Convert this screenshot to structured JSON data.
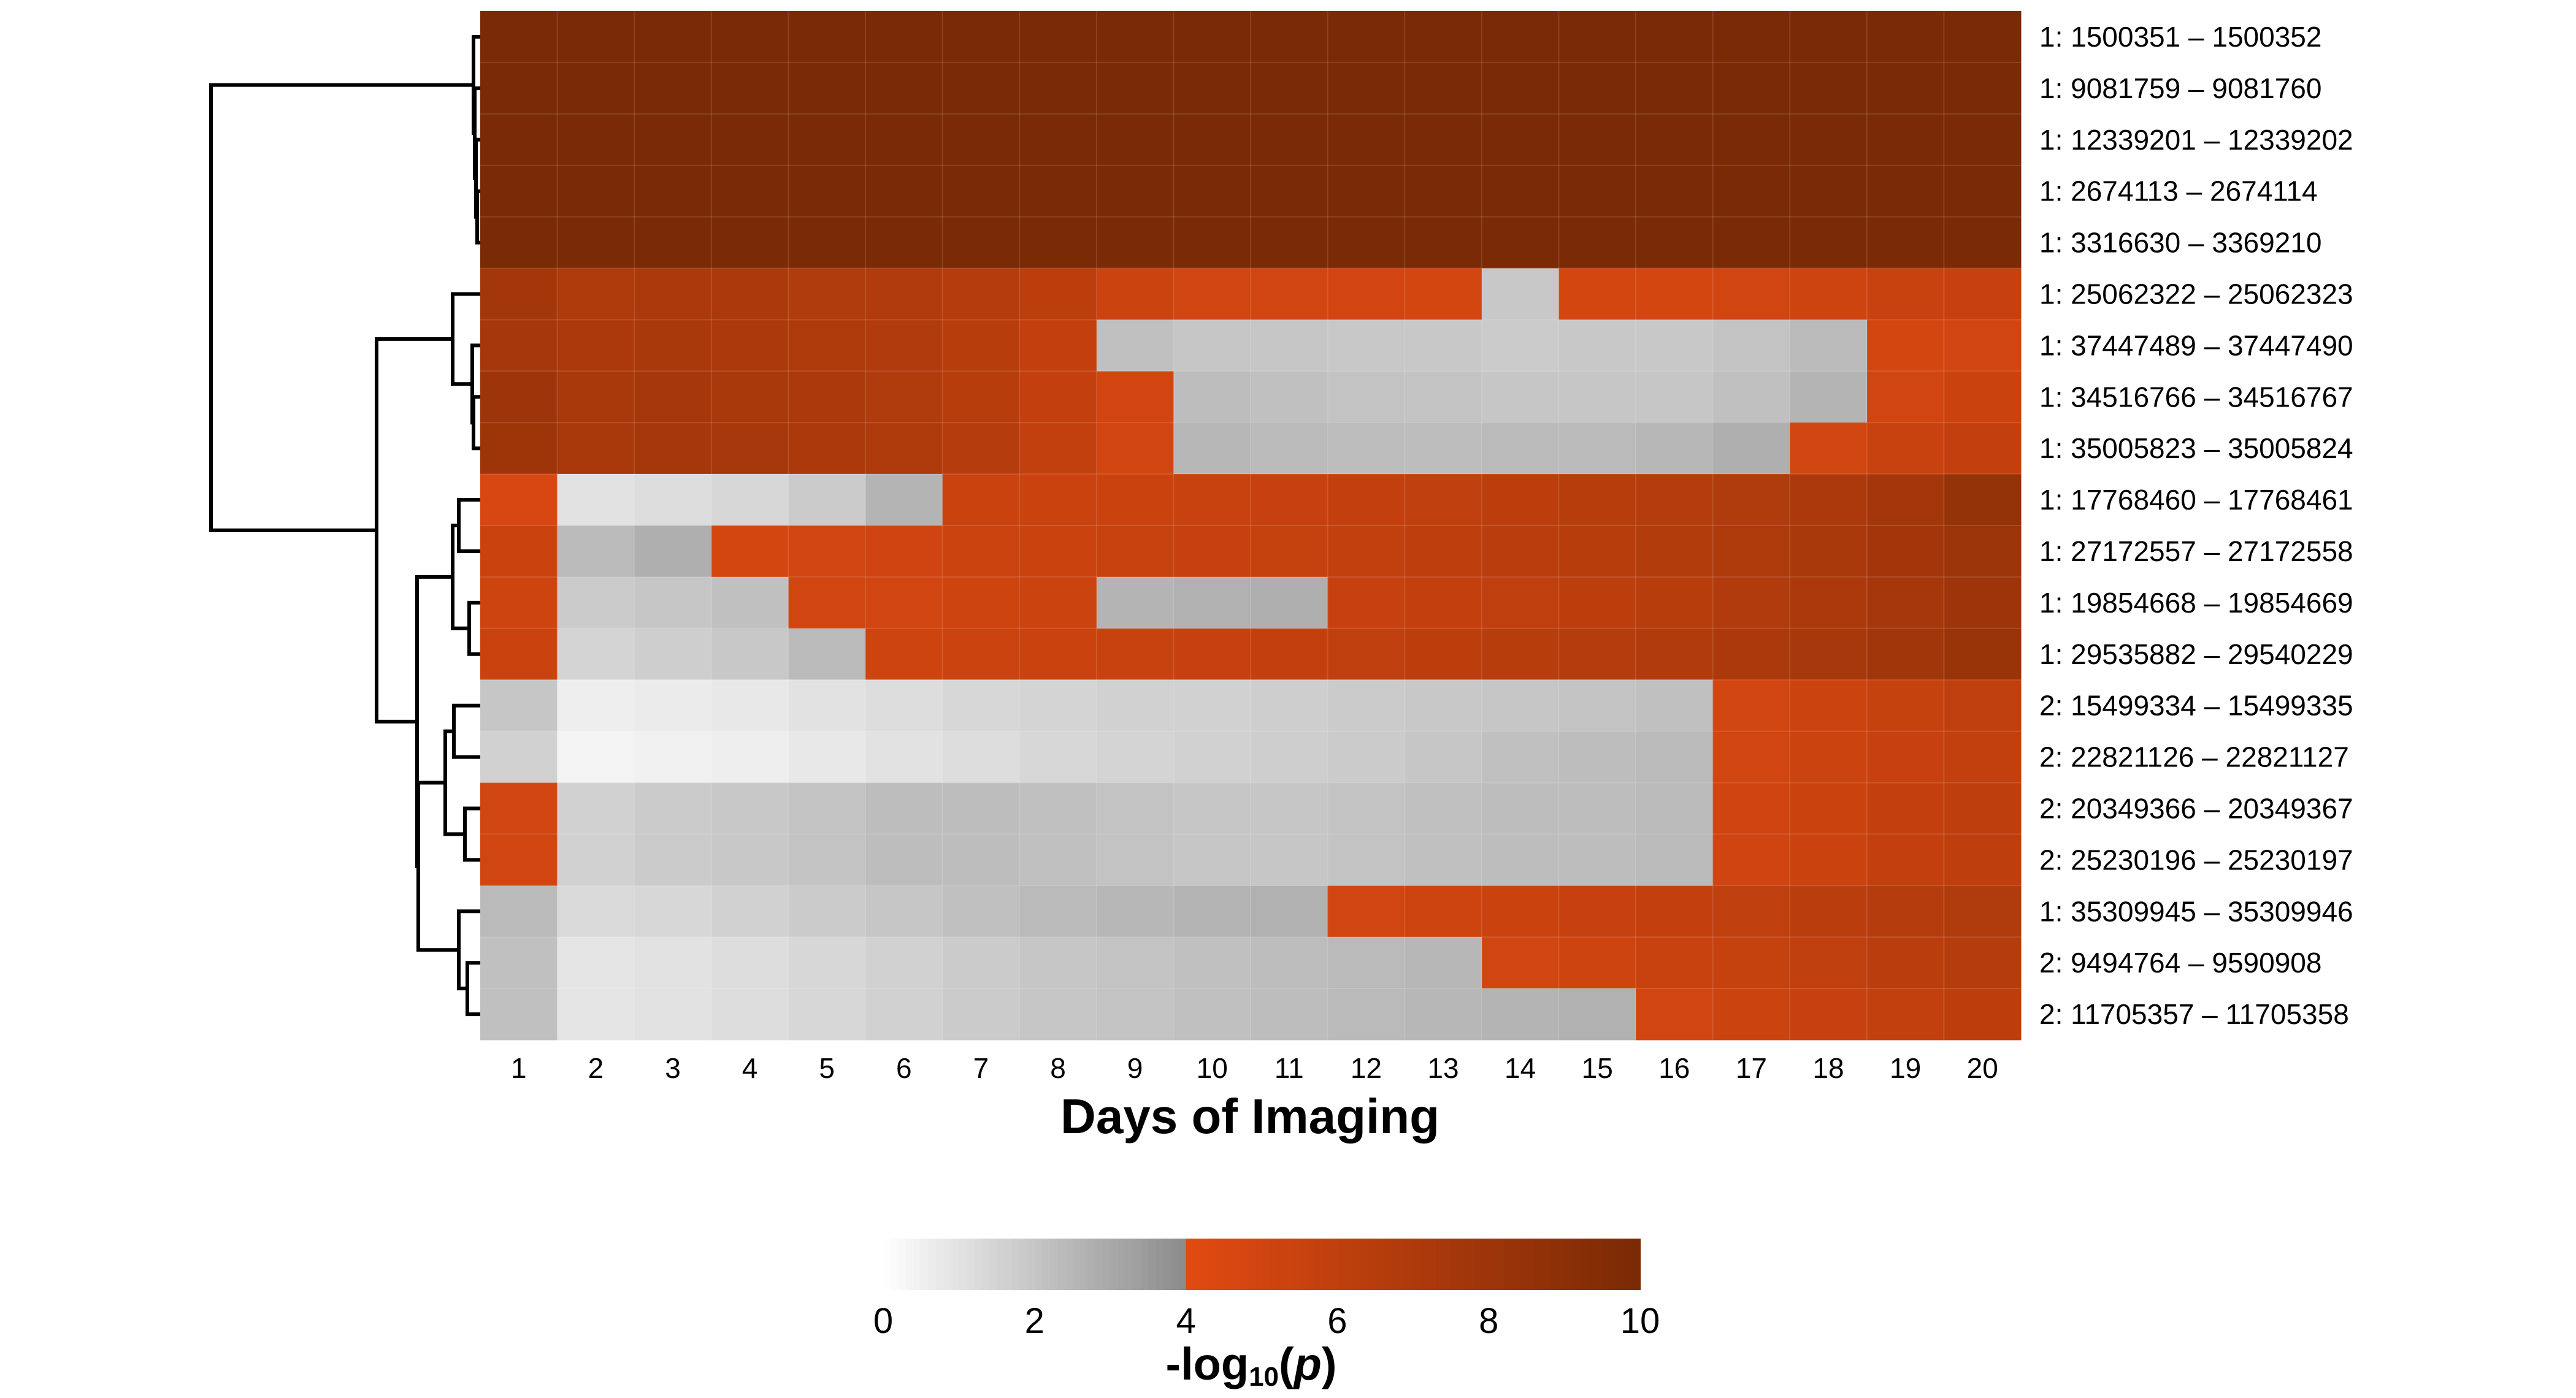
{
  "chart_data": {
    "type": "heatmap",
    "xlabel": "Days of Imaging",
    "x": [
      1,
      2,
      3,
      4,
      5,
      6,
      7,
      8,
      9,
      10,
      11,
      12,
      13,
      14,
      15,
      16,
      17,
      18,
      19,
      20
    ],
    "rows": [
      "1: 1500351 – 1500352",
      "1: 9081759 – 9081760",
      "1: 12339201 – 12339202",
      "1: 2674113 – 2674114",
      "1: 3316630 – 3369210",
      "1: 25062322 – 25062323",
      "1: 37447489 – 37447490",
      "1: 34516766 – 34516767",
      "1: 35005823 – 35005824",
      "1: 17768460 – 17768461",
      "1: 27172557 – 27172558",
      "1: 19854668 – 19854669",
      "1: 29535882 – 29540229",
      "2: 15499334 – 15499335",
      "2: 22821126 – 22821127",
      "2: 20349366 – 20349367",
      "2: 25230196 – 25230197",
      "1: 35309945 – 35309946",
      "2: 9494764 – 9590908",
      "2: 11705357 – 11705358"
    ],
    "values": [
      [
        10,
        10,
        10,
        10,
        10,
        10,
        10,
        10,
        10,
        10,
        10,
        10,
        10,
        10,
        10,
        10,
        10,
        10,
        10,
        10
      ],
      [
        10,
        10,
        10,
        10,
        10,
        10,
        10,
        10,
        10,
        10,
        10,
        10,
        10,
        10,
        10,
        10,
        10,
        10,
        10,
        10
      ],
      [
        10,
        10,
        10,
        10,
        10,
        10,
        10,
        10,
        10,
        10,
        10,
        10,
        10,
        10,
        10,
        10,
        10,
        10,
        10,
        10
      ],
      [
        10,
        10,
        10,
        10,
        10,
        10,
        10,
        10,
        10,
        10,
        10,
        10,
        10,
        10,
        10,
        10,
        10,
        10,
        10,
        10
      ],
      [
        10,
        10,
        10,
        10,
        10,
        10,
        10,
        10,
        10,
        10,
        10,
        10,
        10,
        10,
        10,
        10,
        10,
        10,
        10,
        10
      ],
      [
        7.6,
        7.0,
        7.2,
        7.1,
        6.9,
        6.8,
        6.6,
        6.2,
        5.3,
        5.0,
        5.0,
        4.9,
        4.8,
        1.9,
        4.8,
        4.8,
        5.0,
        5.2,
        5.5,
        5.6
      ],
      [
        7.5,
        7.1,
        7.3,
        7.2,
        7.0,
        6.8,
        6.4,
        5.8,
        2.2,
        2.0,
        2.0,
        1.9,
        1.9,
        1.8,
        1.9,
        1.9,
        2.1,
        2.4,
        4.8,
        5.0
      ],
      [
        7.9,
        7.3,
        7.5,
        7.3,
        7.1,
        6.9,
        6.5,
        5.8,
        4.9,
        2.3,
        2.2,
        2.1,
        2.1,
        2.0,
        2.0,
        2.0,
        2.2,
        2.6,
        5.0,
        5.4
      ],
      [
        8.0,
        7.3,
        7.5,
        7.4,
        7.2,
        7.0,
        6.6,
        5.9,
        5.0,
        2.5,
        2.4,
        2.3,
        2.3,
        2.4,
        2.4,
        2.5,
        2.8,
        5.0,
        5.5,
        5.8
      ],
      [
        4.6,
        1.0,
        1.2,
        1.4,
        1.8,
        2.6,
        5.4,
        5.4,
        5.4,
        5.5,
        5.6,
        5.8,
        6.0,
        6.2,
        6.4,
        6.6,
        6.9,
        7.2,
        7.6,
        8.5
      ],
      [
        5.4,
        2.4,
        2.8,
        4.8,
        5.0,
        5.1,
        5.3,
        5.4,
        5.5,
        5.6,
        5.7,
        5.9,
        6.1,
        6.3,
        6.5,
        6.7,
        7.0,
        7.3,
        7.7,
        8.1
      ],
      [
        5.2,
        1.8,
        2.0,
        2.2,
        5.0,
        5.0,
        5.2,
        5.3,
        2.6,
        2.7,
        2.8,
        5.6,
        5.8,
        6.0,
        6.2,
        6.5,
        6.8,
        7.1,
        7.5,
        7.9
      ],
      [
        5.4,
        1.5,
        1.7,
        1.9,
        2.4,
        5.2,
        5.3,
        5.4,
        5.5,
        5.6,
        5.8,
        6.0,
        6.2,
        6.4,
        6.6,
        6.8,
        7.1,
        7.4,
        7.8,
        8.2
      ],
      [
        2.0,
        0.6,
        0.7,
        0.8,
        1.0,
        1.2,
        1.4,
        1.5,
        1.6,
        1.6,
        1.7,
        1.8,
        1.9,
        2.0,
        2.1,
        2.2,
        5.0,
        5.3,
        5.7,
        6.0
      ],
      [
        1.6,
        0.4,
        0.5,
        0.6,
        0.8,
        1.0,
        1.2,
        1.4,
        1.5,
        1.6,
        1.7,
        1.8,
        2.0,
        2.2,
        2.3,
        2.4,
        5.0,
        5.3,
        5.6,
        5.9
      ],
      [
        5.0,
        1.6,
        1.8,
        1.9,
        2.1,
        2.3,
        2.3,
        2.2,
        2.1,
        2.0,
        2.0,
        2.1,
        2.2,
        2.3,
        2.3,
        2.4,
        5.1,
        5.4,
        5.8,
        6.1
      ],
      [
        5.0,
        1.6,
        1.8,
        1.9,
        2.1,
        2.3,
        2.3,
        2.2,
        2.1,
        2.0,
        2.0,
        2.1,
        2.2,
        2.3,
        2.3,
        2.4,
        5.1,
        5.4,
        5.8,
        6.1
      ],
      [
        2.4,
        1.3,
        1.4,
        1.6,
        1.8,
        2.0,
        2.2,
        2.4,
        2.5,
        2.6,
        2.7,
        5.0,
        5.2,
        5.4,
        5.6,
        5.8,
        6.0,
        6.3,
        6.6,
        6.9
      ],
      [
        2.2,
        0.9,
        1.0,
        1.2,
        1.4,
        1.6,
        1.8,
        2.0,
        2.1,
        2.2,
        2.3,
        2.4,
        2.5,
        5.0,
        5.2,
        5.5,
        5.7,
        6.0,
        6.3,
        6.6
      ],
      [
        2.2,
        0.9,
        1.0,
        1.2,
        1.4,
        1.6,
        1.8,
        2.0,
        2.1,
        2.2,
        2.3,
        2.4,
        2.5,
        2.6,
        2.7,
        5.0,
        5.3,
        5.6,
        5.9,
        6.2
      ]
    ],
    "colorscale": {
      "min": 0,
      "max": 10,
      "threshold": 4,
      "ticks": [
        "0",
        "2",
        "4",
        "6",
        "8",
        "10"
      ],
      "low_colors": [
        "#ffffff",
        "#8c8c8c"
      ],
      "high_colors": [
        "#e24a12",
        "#7a2a05"
      ]
    },
    "colorbar_title": {
      "prefix": "-log",
      "subscript": "10",
      "open": "(",
      "variable": "p",
      "close": ")"
    },
    "dendrogram": true
  }
}
